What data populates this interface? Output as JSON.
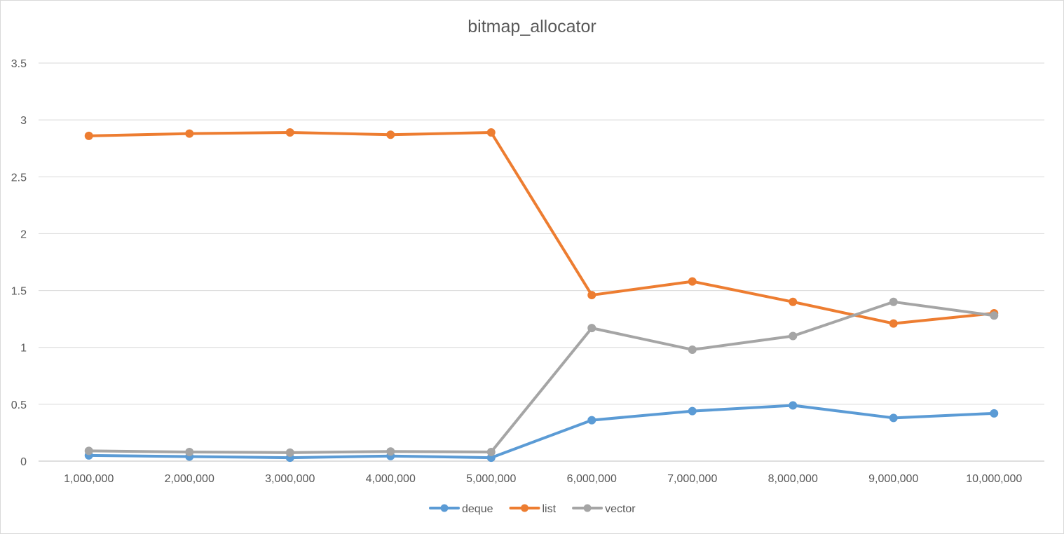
{
  "chart_data": {
    "type": "line",
    "title": "bitmap_allocator",
    "xlabel": "",
    "ylabel": "",
    "categories": [
      "1,000,000",
      "2,000,000",
      "3,000,000",
      "4,000,000",
      "5,000,000",
      "6,000,000",
      "7,000,000",
      "8,000,000",
      "9,000,000",
      "10,000,000"
    ],
    "y_ticks": [
      "0",
      "0.5",
      "1",
      "1.5",
      "2",
      "2.5",
      "3",
      "3.5"
    ],
    "ylim": [
      0,
      3.5
    ],
    "grid": true,
    "legend_position": "bottom",
    "series": [
      {
        "name": "deque",
        "color": "#5b9bd5",
        "values": [
          0.05,
          0.04,
          0.03,
          0.045,
          0.03,
          0.36,
          0.44,
          0.49,
          0.38,
          0.42
        ]
      },
      {
        "name": "list",
        "color": "#ed7d31",
        "values": [
          2.86,
          2.88,
          2.89,
          2.87,
          2.89,
          1.46,
          1.58,
          1.4,
          1.21,
          1.3
        ]
      },
      {
        "name": "vector",
        "color": "#a5a5a5",
        "values": [
          0.09,
          0.08,
          0.075,
          0.085,
          0.08,
          1.17,
          0.98,
          1.1,
          1.4,
          1.28
        ]
      }
    ]
  }
}
